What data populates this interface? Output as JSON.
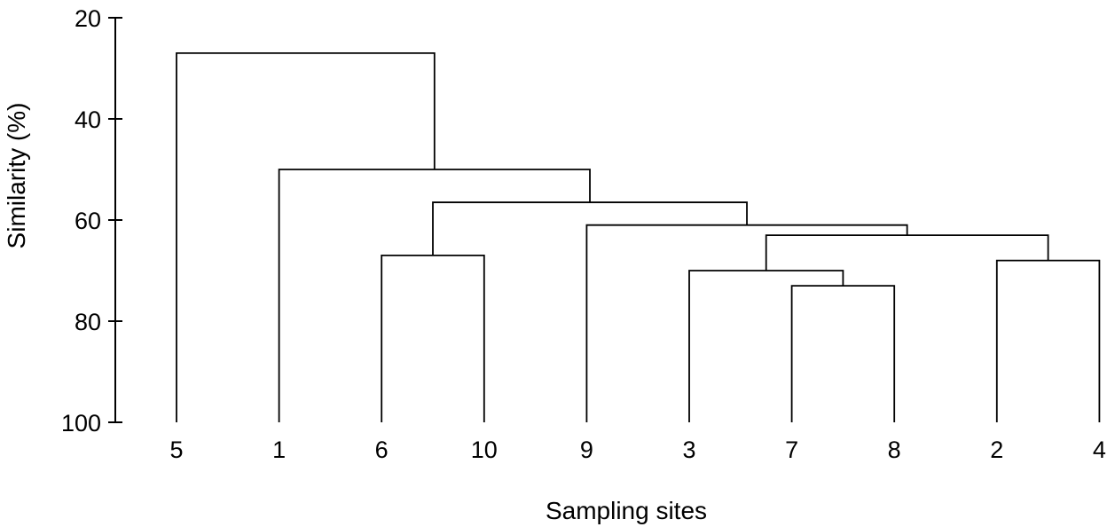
{
  "chart_data": {
    "type": "dendrogram",
    "title": "",
    "xlabel": "Sampling sites",
    "ylabel": "Similarity (%)",
    "ylim": [
      20,
      100
    ],
    "y_inverted": true,
    "yticks": [
      20,
      40,
      60,
      80,
      100
    ],
    "leaves": [
      "5",
      "1",
      "6",
      "10",
      "9",
      "3",
      "7",
      "8",
      "2",
      "4"
    ],
    "merges": [
      {
        "id": "c78",
        "children": [
          "7",
          "8"
        ],
        "similarity": 73
      },
      {
        "id": "c24",
        "children": [
          "2",
          "4"
        ],
        "similarity": 68
      },
      {
        "id": "c610",
        "children": [
          "6",
          "10"
        ],
        "similarity": 67
      },
      {
        "id": "c378",
        "children": [
          "3",
          "c78"
        ],
        "similarity": 70
      },
      {
        "id": "cA",
        "children": [
          "c378",
          "c24"
        ],
        "similarity": 63
      },
      {
        "id": "cB",
        "children": [
          "9",
          "cA"
        ],
        "similarity": 61
      },
      {
        "id": "cC",
        "children": [
          "c610",
          "cB"
        ],
        "similarity": 56.5
      },
      {
        "id": "cD",
        "children": [
          "1",
          "cC"
        ],
        "similarity": 50
      },
      {
        "id": "cE",
        "children": [
          "5",
          "cD"
        ],
        "similarity": 27
      }
    ],
    "grid": false,
    "legend": "none"
  }
}
